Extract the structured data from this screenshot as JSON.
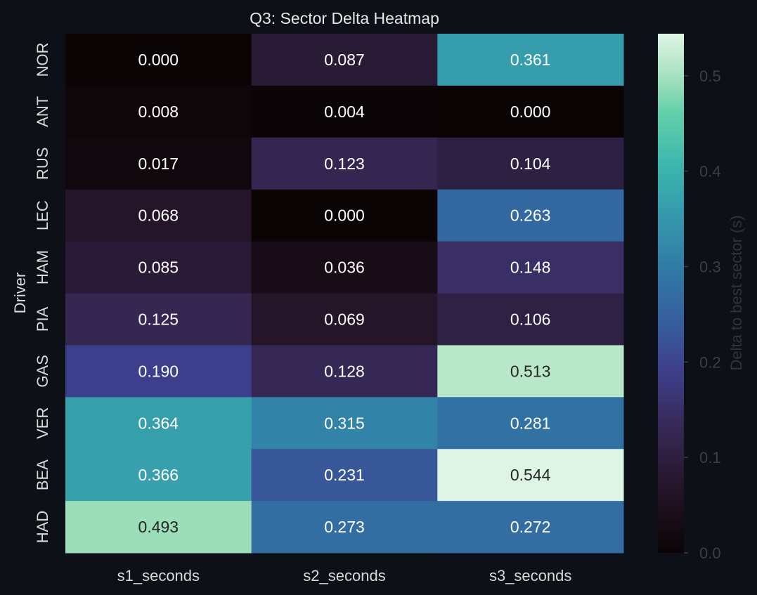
{
  "chart_data": {
    "type": "heatmap",
    "title": "Q3: Sector Delta Heatmap",
    "xlabel": "",
    "ylabel": "Driver",
    "columns": [
      "s1_seconds",
      "s2_seconds",
      "s3_seconds"
    ],
    "rows": [
      "NOR",
      "ANT",
      "RUS",
      "LEC",
      "HAM",
      "PIA",
      "GAS",
      "VER",
      "BEA",
      "HAD"
    ],
    "values": [
      [
        0.0,
        0.087,
        0.361
      ],
      [
        0.008,
        0.004,
        0.0
      ],
      [
        0.017,
        0.123,
        0.104
      ],
      [
        0.068,
        0.0,
        0.263
      ],
      [
        0.085,
        0.036,
        0.148
      ],
      [
        0.125,
        0.069,
        0.106
      ],
      [
        0.19,
        0.128,
        0.513
      ],
      [
        0.364,
        0.315,
        0.281
      ],
      [
        0.366,
        0.231,
        0.544
      ],
      [
        0.493,
        0.273,
        0.272
      ]
    ],
    "labels": [
      [
        "0.000",
        "0.087",
        "0.361"
      ],
      [
        "0.008",
        "0.004",
        "0.000"
      ],
      [
        "0.017",
        "0.123",
        "0.104"
      ],
      [
        "0.068",
        "0.000",
        "0.263"
      ],
      [
        "0.085",
        "0.036",
        "0.148"
      ],
      [
        "0.125",
        "0.069",
        "0.106"
      ],
      [
        "0.190",
        "0.128",
        "0.513"
      ],
      [
        "0.364",
        "0.315",
        "0.281"
      ],
      [
        "0.366",
        "0.231",
        "0.544"
      ],
      [
        "0.493",
        "0.273",
        "0.272"
      ]
    ],
    "vmin": 0.0,
    "vmax": 0.544,
    "colormap": "mako",
    "colorbar": {
      "label": "Delta to best sector (s)",
      "ticks": [
        0.0,
        0.1,
        0.2,
        0.3,
        0.4,
        0.5
      ],
      "tick_labels": [
        "0.0",
        "0.1",
        "0.2",
        "0.3",
        "0.4",
        "0.5"
      ],
      "placement": "right"
    },
    "grid": false
  },
  "colors": {
    "background": "#0d1117",
    "text": "#e6e6e6",
    "cell_text_dark": "#262626",
    "cell_text_light": "#ffffff",
    "colorbar_text": "#3a3f46"
  }
}
